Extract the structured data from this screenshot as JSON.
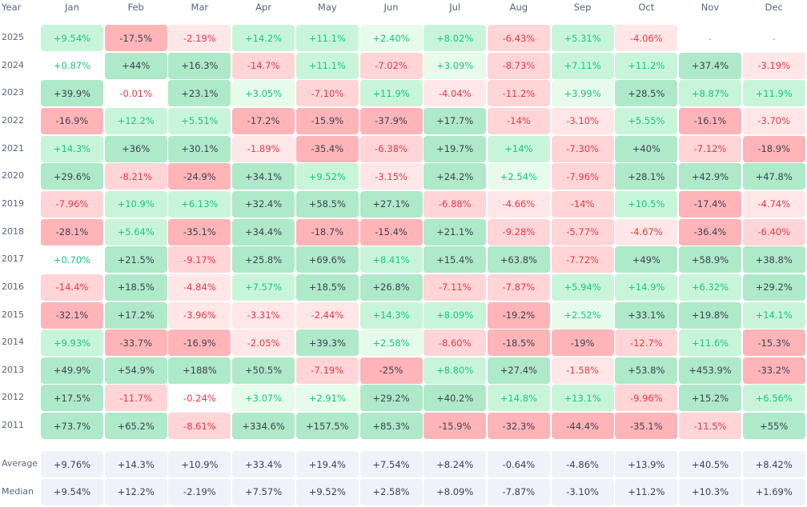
{
  "chart_data": {
    "type": "heatmap",
    "title": "",
    "row_header": "Year",
    "months": [
      "Jan",
      "Feb",
      "Mar",
      "Apr",
      "May",
      "Jun",
      "Jul",
      "Aug",
      "Sep",
      "Oct",
      "Nov",
      "Dec"
    ],
    "rows": [
      {
        "year": "2025",
        "values": [
          "+9.54%",
          "-17.5%",
          "-2.19%",
          "+14.2%",
          "+11.1%",
          "+2.40%",
          "+8.02%",
          "-6.43%",
          "+5.31%",
          "-4.06%",
          "-",
          "-"
        ]
      },
      {
        "year": "2024",
        "values": [
          "+0.87%",
          "+44%",
          "+16.3%",
          "-14.7%",
          "+11.1%",
          "-7.02%",
          "+3.09%",
          "-8.73%",
          "+7.11%",
          "+11.2%",
          "+37.4%",
          "-3.19%"
        ]
      },
      {
        "year": "2023",
        "values": [
          "+39.9%",
          "-0.01%",
          "+23.1%",
          "+3.05%",
          "-7.10%",
          "+11.9%",
          "-4.04%",
          "-11.2%",
          "+3.99%",
          "+28.5%",
          "+8.87%",
          "+11.9%"
        ]
      },
      {
        "year": "2022",
        "values": [
          "-16.9%",
          "+12.2%",
          "+5.51%",
          "-17.2%",
          "-15.9%",
          "-37.9%",
          "+17.7%",
          "-14%",
          "-3.10%",
          "+5.55%",
          "-16.1%",
          "-3.70%"
        ]
      },
      {
        "year": "2021",
        "values": [
          "+14.3%",
          "+36%",
          "+30.1%",
          "-1.89%",
          "-35.4%",
          "-6.38%",
          "+19.7%",
          "+14%",
          "-7.30%",
          "+40%",
          "-7.12%",
          "-18.9%"
        ]
      },
      {
        "year": "2020",
        "values": [
          "+29.6%",
          "-8.21%",
          "-24.9%",
          "+34.1%",
          "+9.52%",
          "-3.15%",
          "+24.2%",
          "+2.54%",
          "-7.96%",
          "+28.1%",
          "+42.9%",
          "+47.8%"
        ]
      },
      {
        "year": "2019",
        "values": [
          "-7.96%",
          "+10.9%",
          "+6.13%",
          "+32.4%",
          "+58.5%",
          "+27.1%",
          "-6.88%",
          "-4.66%",
          "-14%",
          "+10.5%",
          "-17.4%",
          "-4.74%"
        ]
      },
      {
        "year": "2018",
        "values": [
          "-28.1%",
          "+5.64%",
          "-35.1%",
          "+34.4%",
          "-18.7%",
          "-15.4%",
          "+21.1%",
          "-9.28%",
          "-5.77%",
          "-4.67%",
          "-36.4%",
          "-6.40%"
        ]
      },
      {
        "year": "2017",
        "values": [
          "+0.70%",
          "+21.5%",
          "-9.17%",
          "+25.8%",
          "+69.6%",
          "+8.41%",
          "+15.4%",
          "+63.8%",
          "-7.72%",
          "+49%",
          "+58.9%",
          "+38.8%"
        ]
      },
      {
        "year": "2016",
        "values": [
          "-14.4%",
          "+18.5%",
          "-4.84%",
          "+7.57%",
          "+18.5%",
          "+26.8%",
          "-7.11%",
          "-7.87%",
          "+5.94%",
          "+14.9%",
          "+6.32%",
          "+29.2%"
        ]
      },
      {
        "year": "2015",
        "values": [
          "-32.1%",
          "+17.2%",
          "-3.96%",
          "-3.31%",
          "-2.44%",
          "+14.3%",
          "+8.09%",
          "-19.2%",
          "+2.52%",
          "+33.1%",
          "+19.8%",
          "+14.1%"
        ]
      },
      {
        "year": "2014",
        "values": [
          "+9.93%",
          "-33.7%",
          "-16.9%",
          "-2.05%",
          "+39.3%",
          "+2.58%",
          "-8.60%",
          "-18.5%",
          "-19%",
          "-12.7%",
          "+11.6%",
          "-15.3%"
        ]
      },
      {
        "year": "2013",
        "values": [
          "+49.9%",
          "+54.9%",
          "+188%",
          "+50.5%",
          "-7.19%",
          "-25%",
          "+8.80%",
          "+27.4%",
          "-1.58%",
          "+53.8%",
          "+453.9%",
          "-33.2%"
        ]
      },
      {
        "year": "2012",
        "values": [
          "+17.5%",
          "-11.7%",
          "-0.24%",
          "+3.07%",
          "+2.91%",
          "+29.2%",
          "+40.2%",
          "+14.8%",
          "+13.1%",
          "-9.96%",
          "+15.2%",
          "+6.56%"
        ]
      },
      {
        "year": "2011",
        "values": [
          "+73.7%",
          "+65.2%",
          "-8.61%",
          "+334.6%",
          "+157.5%",
          "+85.3%",
          "-15.9%",
          "-32.3%",
          "-44.4%",
          "-35.1%",
          "-11.5%",
          "+55%"
        ]
      }
    ],
    "summary": [
      {
        "label": "Average",
        "values": [
          "+9.76%",
          "+14.3%",
          "+10.9%",
          "+33.4%",
          "+19.4%",
          "+7.54%",
          "+8.24%",
          "-0.64%",
          "-4.86%",
          "+13.9%",
          "+40.5%",
          "+8.42%"
        ]
      },
      {
        "label": "Median",
        "values": [
          "+9.54%",
          "+12.2%",
          "-2.19%",
          "+7.57%",
          "+9.52%",
          "+2.58%",
          "+8.09%",
          "-7.87%",
          "-3.10%",
          "+11.2%",
          "+10.3%",
          "+1.69%"
        ]
      }
    ]
  },
  "colors": {
    "green": [
      "#ffffff",
      "#e6fbe9",
      "#c8f5da",
      "#aee9c9"
    ],
    "red": [
      "#ffffff",
      "#ffe6e7",
      "#ffd5d7",
      "#ffb4b8"
    ],
    "green_text": "#16c784",
    "red_text": "#ea3943",
    "dark_text": "#3d4350",
    "summary_bg": "#eff2f8"
  }
}
